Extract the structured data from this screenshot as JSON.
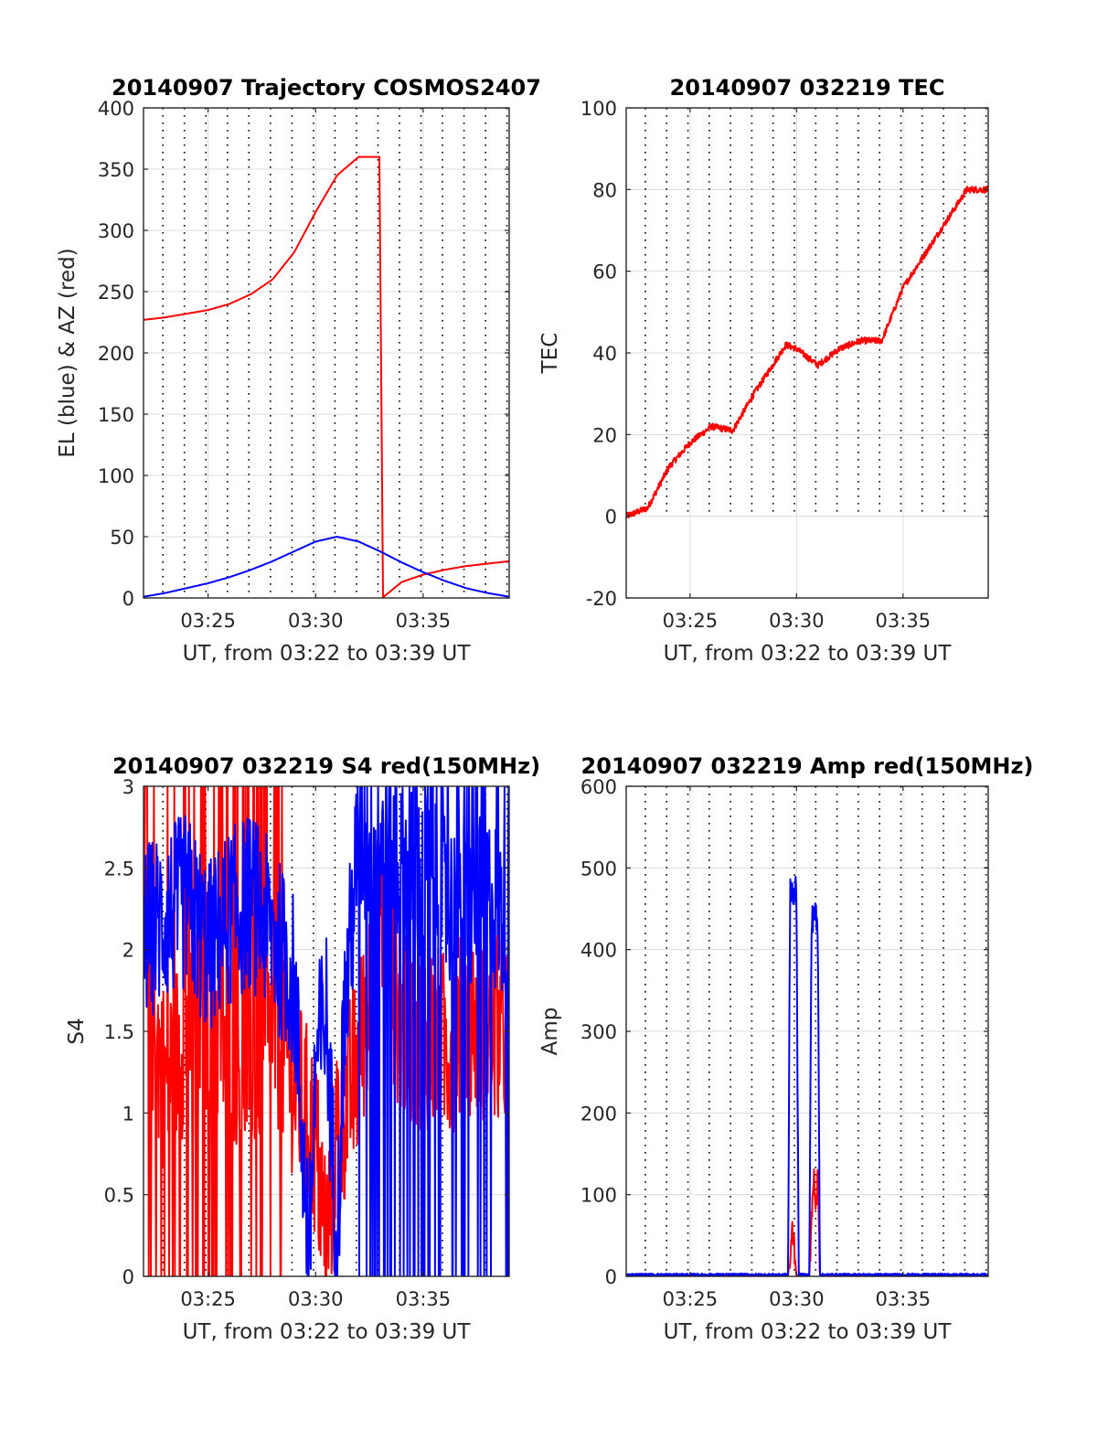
{
  "colors": {
    "red": "#ff0000",
    "blue": "#0000ff",
    "grid": "#dcdcdc",
    "axes": "#262626",
    "dotted": "#000000"
  },
  "chart_data": [
    {
      "type": "line",
      "title": "20140907 Trajectory COSMOS2407",
      "xlabel": "UT, from 03:22 to 03:39 UT",
      "ylabel": "EL (blue) & AZ (red)",
      "xlim": [
        "03:22",
        "03:39"
      ],
      "xticks": [
        "03:25",
        "03:30",
        "03:35"
      ],
      "ylim": [
        0,
        400
      ],
      "yticks": [
        "0",
        "50",
        "100",
        "150",
        "200",
        "250",
        "300",
        "350",
        "400"
      ],
      "series": [
        {
          "color": "#ff0000",
          "x": [
            "03:22",
            "03:23",
            "03:24",
            "03:25",
            "03:26",
            "03:27",
            "03:28",
            "03:29",
            "03:30",
            "03:31",
            "03:32",
            "03:33",
            "03:33.1",
            "03:34",
            "03:35",
            "03:36",
            "03:37",
            "03:38",
            "03:39"
          ],
          "y": [
            227,
            229,
            232,
            235,
            240,
            248,
            260,
            282,
            315,
            345,
            360,
            360,
            0,
            13,
            19,
            23,
            26,
            28,
            30
          ]
        },
        {
          "color": "#0000ff",
          "x": [
            "03:22",
            "03:23",
            "03:24",
            "03:25",
            "03:26",
            "03:27",
            "03:28",
            "03:29",
            "03:30",
            "03:31",
            "03:32",
            "03:33",
            "03:34",
            "03:35",
            "03:36",
            "03:37",
            "03:38",
            "03:39"
          ],
          "y": [
            1,
            4,
            8,
            12,
            17,
            23,
            30,
            38,
            46,
            50,
            46,
            38,
            29,
            21,
            14,
            8,
            4,
            1
          ]
        }
      ]
    },
    {
      "type": "line",
      "title": "20140907 032219 TEC",
      "xlabel": "UT, from 03:22 to 03:39 UT",
      "ylabel": "TEC",
      "xlim": [
        "03:22",
        "03:39"
      ],
      "xticks": [
        "03:25",
        "03:30",
        "03:35"
      ],
      "ylim": [
        -20,
        100
      ],
      "yticks": [
        "-20",
        "0",
        "20",
        "40",
        "60",
        "80",
        "100"
      ],
      "series": [
        {
          "color": "#ff0000",
          "x": [
            "03:22",
            "03:23",
            "03:24",
            "03:25",
            "03:26",
            "03:27",
            "03:28",
            "03:29",
            "03:29.5",
            "03:30",
            "03:31",
            "03:32",
            "03:33",
            "03:34",
            "03:35",
            "03:36",
            "03:37",
            "03:38",
            "03:39"
          ],
          "y": [
            0,
            2,
            12,
            18,
            22,
            21,
            30,
            38,
            42,
            41,
            37,
            41,
            43,
            43,
            56,
            64,
            72,
            80,
            80
          ]
        }
      ]
    },
    {
      "type": "line",
      "title": "20140907 032219 S4 red(150MHz)",
      "xlabel": "UT, from 03:22 to 03:39 UT",
      "ylabel": "S4",
      "xlim": [
        "03:22",
        "03:39"
      ],
      "xticks": [
        "03:25",
        "03:30",
        "03:35"
      ],
      "ylim": [
        0,
        3
      ],
      "yticks": [
        "0",
        "0.5",
        "1",
        "1.5",
        "2",
        "2.5",
        "3"
      ],
      "series": [
        {
          "color": "#ff0000",
          "x": [
            "03:22",
            "03:23",
            "03:24",
            "03:25",
            "03:26",
            "03:27",
            "03:28",
            "03:29",
            "03:30",
            "03:30.5",
            "03:31",
            "03:32",
            "03:33",
            "03:34",
            "03:35",
            "03:36",
            "03:37",
            "03:38",
            "03:39"
          ],
          "y": [
            1.8,
            1.2,
            1.5,
            1.6,
            1.4,
            1.3,
            1.5,
            1.2,
            0.8,
            0.2,
            0.9,
            1.3,
            2.2,
            1.5,
            1.5,
            1.4,
            1.6,
            1.5,
            1.5
          ]
        },
        {
          "color": "#0000ff",
          "x": [
            "03:22",
            "03:23",
            "03:24",
            "03:25",
            "03:26",
            "03:27",
            "03:28",
            "03:29",
            "03:29.7",
            "03:30",
            "03:30.5",
            "03:31",
            "03:31.3",
            "03:32",
            "03:33",
            "03:34",
            "03:35",
            "03:36",
            "03:37",
            "03:38",
            "03:39"
          ],
          "y": [
            2.1,
            2.2,
            2.3,
            2.0,
            2.2,
            2.3,
            2.1,
            1.8,
            0.1,
            1.3,
            1.6,
            0.15,
            1.5,
            2.7,
            2.6,
            2.5,
            2.4,
            2.3,
            2.2,
            2.3,
            2.2
          ]
        }
      ]
    },
    {
      "type": "line",
      "title": "20140907 032219 Amp red(150MHz)",
      "xlabel": "UT, from 03:22 to 03:39 UT",
      "ylabel": "Amp",
      "xlim": [
        "03:22",
        "03:39"
      ],
      "xticks": [
        "03:25",
        "03:30",
        "03:35"
      ],
      "ylim": [
        0,
        600
      ],
      "yticks": [
        "0",
        "100",
        "200",
        "300",
        "400",
        "500",
        "600"
      ],
      "series": [
        {
          "color": "#ff0000",
          "x": [
            "03:22",
            "03:29.6",
            "03:29.8",
            "03:29.9",
            "03:30.0",
            "03:30.1",
            "03:30.6",
            "03:30.8",
            "03:30.9",
            "03:31.0",
            "03:31.1",
            "03:39"
          ],
          "y": [
            0,
            0,
            60,
            30,
            0,
            0,
            0,
            130,
            60,
            140,
            0,
            0
          ]
        },
        {
          "color": "#0000ff",
          "x": [
            "03:22",
            "03:29.6",
            "03:29.7",
            "03:29.8",
            "03:29.9",
            "03:30.0",
            "03:30.1",
            "03:30.6",
            "03:30.7",
            "03:30.8",
            "03:30.9",
            "03:31.0",
            "03:31.1",
            "03:39"
          ],
          "y": [
            2,
            2,
            475,
            470,
            480,
            460,
            2,
            2,
            425,
            450,
            440,
            420,
            2,
            2
          ]
        }
      ]
    }
  ]
}
